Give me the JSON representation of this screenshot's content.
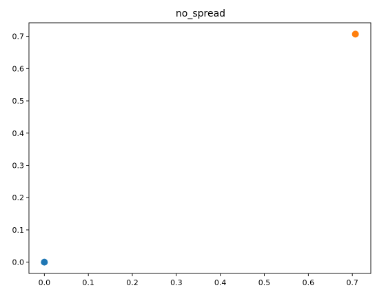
{
  "chart_data": {
    "type": "scatter",
    "title": "no_spread",
    "xlabel": "",
    "ylabel": "",
    "xlim": [
      -0.035,
      0.742
    ],
    "ylim": [
      -0.035,
      0.742
    ],
    "grid": false,
    "x_ticks": [
      0.0,
      0.1,
      0.2,
      0.3,
      0.4,
      0.5,
      0.6,
      0.7
    ],
    "x_tick_labels": [
      "0.0",
      "0.1",
      "0.2",
      "0.3",
      "0.4",
      "0.5",
      "0.6",
      "0.7"
    ],
    "y_ticks": [
      0.0,
      0.1,
      0.2,
      0.3,
      0.4,
      0.5,
      0.6,
      0.7
    ],
    "y_tick_labels": [
      "0.0",
      "0.1",
      "0.2",
      "0.3",
      "0.4",
      "0.5",
      "0.6",
      "0.7"
    ],
    "series": [
      {
        "color": "#1f77b4",
        "points": [
          [
            0.0,
            0.0
          ]
        ]
      },
      {
        "color": "#ff7f0e",
        "points": [
          [
            0.707,
            0.707
          ]
        ]
      }
    ]
  }
}
